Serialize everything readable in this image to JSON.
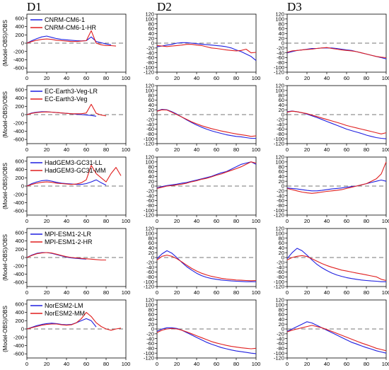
{
  "column_titles": [
    "D1",
    "D2",
    "D3"
  ],
  "colors": {
    "model_a": "#1f1fe0",
    "model_b": "#e01f1f",
    "zero_line": "#777777"
  },
  "chart_data": {
    "type": "line",
    "x": [
      0,
      5,
      10,
      15,
      20,
      25,
      30,
      35,
      40,
      45,
      50,
      55,
      60,
      65,
      70,
      75,
      80,
      85,
      90,
      95,
      100
    ],
    "x_ticks": [
      0,
      20,
      40,
      60,
      80,
      100
    ],
    "xlim": [
      0,
      100
    ],
    "ylabel": "(Model-OBS)/OBS",
    "grid": false,
    "legend_position": "top-left",
    "panel_axes": {
      "D1": {
        "ylim": [
          -700,
          700
        ],
        "y_ticks": [
          -600,
          -400,
          -200,
          0,
          200,
          400,
          600
        ]
      },
      "D2": {
        "ylim": [
          -120,
          120
        ],
        "y_ticks": [
          -120,
          -100,
          -80,
          -60,
          -40,
          -20,
          0,
          20,
          40,
          60,
          80,
          100,
          120
        ]
      },
      "D3": {
        "ylim": [
          -120,
          120
        ],
        "y_ticks": [
          -120,
          -100,
          -80,
          -60,
          -40,
          -20,
          0,
          20,
          40,
          60,
          80,
          100,
          120
        ]
      }
    },
    "rows": [
      {
        "series_names": [
          "CNRM-CM6-1",
          "CNRM-CM6-1-HR"
        ],
        "D1": {
          "x_end": [
            82,
            92
          ],
          "a": [
            0,
            60,
            110,
            150,
            170,
            140,
            110,
            90,
            80,
            70,
            60,
            55,
            60,
            150,
            40,
            10,
            -20,
            -40,
            null,
            null,
            null
          ],
          "b": [
            0,
            40,
            70,
            90,
            100,
            90,
            70,
            60,
            50,
            40,
            40,
            50,
            60,
            300,
            0,
            -40,
            -60,
            -60,
            -70,
            null,
            null
          ]
        },
        "D2": {
          "a": [
            -15,
            -12,
            -8,
            -5,
            0,
            2,
            2,
            0,
            -2,
            -4,
            -6,
            -8,
            -10,
            -12,
            -15,
            -20,
            -28,
            -35,
            -45,
            -55,
            -72
          ],
          "b": [
            -10,
            -12,
            -14,
            -12,
            -10,
            -8,
            -5,
            -5,
            -8,
            -10,
            -15,
            -20,
            -22,
            -25,
            -28,
            -30,
            -32,
            -30,
            -25,
            -40,
            -38
          ]
        },
        "D3": {
          "a": [
            -40,
            -35,
            -30,
            -28,
            -25,
            -22,
            -22,
            -20,
            -20,
            -20,
            -22,
            -25,
            -28,
            -30,
            -35,
            -40,
            -45,
            -50,
            -55,
            -60,
            -65
          ],
          "b": [
            -38,
            -32,
            -30,
            -28,
            -26,
            -25,
            -22,
            -20,
            -18,
            -22,
            -25,
            -28,
            -30,
            -32,
            -35,
            -40,
            -45,
            -50,
            -55,
            -58,
            -60
          ]
        }
      },
      {
        "series_names": [
          "EC-Earth3-Veg-LR",
          "EC-Earth3-Veg"
        ],
        "D1": {
          "x_end": [
            72,
            82
          ],
          "a": [
            0,
            40,
            60,
            70,
            70,
            60,
            50,
            40,
            30,
            20,
            10,
            0,
            -10,
            -20,
            -40,
            null,
            null,
            null,
            null,
            null,
            null
          ],
          "b": [
            0,
            30,
            50,
            60,
            65,
            60,
            50,
            40,
            30,
            20,
            20,
            20,
            40,
            250,
            30,
            -10,
            -30,
            null,
            null,
            null,
            null
          ]
        },
        "D2": {
          "a": [
            15,
            22,
            20,
            12,
            2,
            -10,
            -22,
            -33,
            -43,
            -52,
            -60,
            -67,
            -73,
            -78,
            -83,
            -87,
            -90,
            -92,
            -95,
            -98,
            -98
          ],
          "b": [
            14,
            20,
            19,
            10,
            0,
            -10,
            -20,
            -30,
            -38,
            -46,
            -52,
            -58,
            -63,
            -68,
            -72,
            -76,
            -80,
            -83,
            -86,
            -90,
            -88
          ]
        },
        "D3": {
          "a": [
            12,
            15,
            12,
            8,
            2,
            -5,
            -12,
            -20,
            -28,
            -36,
            -44,
            -52,
            -60,
            -66,
            -72,
            -78,
            -85,
            -90,
            -95,
            -98,
            -100
          ],
          "b": [
            10,
            14,
            12,
            8,
            4,
            -2,
            -8,
            -14,
            -20,
            -26,
            -32,
            -38,
            -45,
            -50,
            -55,
            -60,
            -65,
            -70,
            -75,
            -80,
            -75
          ]
        }
      },
      {
        "series_names": [
          "HadGEM3-GC31-LL",
          "HadGEM3-GC31-MM"
        ],
        "D1": {
          "x_end": [
            80,
            96
          ],
          "a": [
            0,
            60,
            100,
            130,
            140,
            120,
            90,
            70,
            60,
            50,
            40,
            40,
            60,
            100,
            150,
            80,
            20,
            null,
            null,
            null,
            null
          ],
          "b": [
            0,
            40,
            70,
            90,
            100,
            90,
            70,
            60,
            50,
            40,
            50,
            80,
            150,
            500,
            300,
            200,
            100,
            300,
            450,
            250,
            null
          ]
        },
        "D2": {
          "a": [
            -8,
            -2,
            2,
            5,
            8,
            12,
            15,
            20,
            25,
            30,
            35,
            40,
            48,
            55,
            60,
            70,
            80,
            90,
            95,
            100,
            90
          ],
          "b": [
            -10,
            -5,
            0,
            2,
            5,
            8,
            12,
            18,
            22,
            28,
            32,
            38,
            45,
            50,
            58,
            65,
            72,
            80,
            90,
            100,
            95
          ]
        },
        "D3": {
          "a": [
            -8,
            -10,
            -12,
            -15,
            -18,
            -20,
            -20,
            -18,
            -15,
            -12,
            -10,
            -8,
            -5,
            -2,
            0,
            5,
            10,
            15,
            20,
            25,
            20
          ],
          "b": [
            -10,
            -15,
            -20,
            -25,
            -28,
            -30,
            -28,
            -25,
            -22,
            -20,
            -18,
            -15,
            -10,
            -5,
            0,
            5,
            10,
            20,
            30,
            50,
            100
          ]
        }
      },
      {
        "series_names": [
          "MPI-ESM1-2-LR",
          "MPI-ESM1-2-HR"
        ],
        "D1": {
          "x_end": [
            62,
            80
          ],
          "a": [
            0,
            60,
            100,
            120,
            120,
            100,
            70,
            40,
            10,
            -10,
            -20,
            -30,
            -40,
            null,
            null,
            null,
            null,
            null,
            null,
            null,
            null
          ],
          "b": [
            0,
            50,
            90,
            110,
            120,
            110,
            80,
            50,
            20,
            0,
            -10,
            -20,
            -30,
            -40,
            -50,
            -60,
            -60,
            null,
            null,
            null,
            null
          ]
        },
        "D2": {
          "a": [
            -5,
            15,
            28,
            18,
            0,
            -20,
            -38,
            -52,
            -65,
            -75,
            -82,
            -87,
            -90,
            -93,
            -95,
            -97,
            -98,
            -99,
            -100,
            -100,
            -100
          ],
          "b": [
            -10,
            5,
            10,
            5,
            -5,
            -18,
            -32,
            -45,
            -56,
            -65,
            -72,
            -78,
            -82,
            -86,
            -89,
            -91,
            -93,
            -94,
            -95,
            -96,
            -95
          ]
        },
        "D3": {
          "a": [
            -5,
            20,
            38,
            28,
            10,
            -10,
            -28,
            -42,
            -54,
            -64,
            -72,
            -78,
            -83,
            -87,
            -90,
            -93,
            -95,
            -97,
            -98,
            -100,
            -100
          ],
          "b": [
            -10,
            0,
            5,
            8,
            4,
            -5,
            -15,
            -25,
            -33,
            -40,
            -46,
            -52,
            -56,
            -60,
            -64,
            -68,
            -72,
            -76,
            -80,
            -90,
            -95
          ]
        }
      },
      {
        "series_names": [
          "NorESM2-LM",
          "NorESM2-MM"
        ],
        "D1": {
          "x_end": [
            70,
            96
          ],
          "a": [
            0,
            40,
            80,
            110,
            130,
            140,
            130,
            110,
            100,
            110,
            150,
            200,
            250,
            200,
            50,
            null,
            null,
            null,
            null,
            null,
            null
          ],
          "b": [
            0,
            30,
            60,
            90,
            110,
            120,
            120,
            100,
            90,
            100,
            150,
            250,
            400,
            300,
            150,
            60,
            0,
            -30,
            0,
            20,
            null
          ]
        },
        "D2": {
          "a": [
            -10,
            0,
            5,
            5,
            2,
            -5,
            -15,
            -25,
            -35,
            -45,
            -55,
            -63,
            -70,
            -77,
            -82,
            -87,
            -91,
            -94,
            -97,
            -100,
            -102
          ],
          "b": [
            -15,
            -5,
            0,
            2,
            0,
            -5,
            -12,
            -20,
            -28,
            -36,
            -44,
            -52,
            -58,
            -63,
            -68,
            -72,
            -75,
            -78,
            -80,
            -82,
            -80
          ]
        },
        "D3": {
          "a": [
            -10,
            0,
            10,
            20,
            30,
            25,
            15,
            5,
            -5,
            -15,
            -25,
            -35,
            -45,
            -55,
            -62,
            -70,
            -77,
            -83,
            -90,
            -95,
            -100
          ],
          "b": [
            -12,
            -5,
            0,
            5,
            10,
            15,
            10,
            5,
            -2,
            -10,
            -18,
            -26,
            -34,
            -42,
            -50,
            -58,
            -65,
            -72,
            -80,
            -85,
            -90
          ]
        }
      }
    ]
  }
}
